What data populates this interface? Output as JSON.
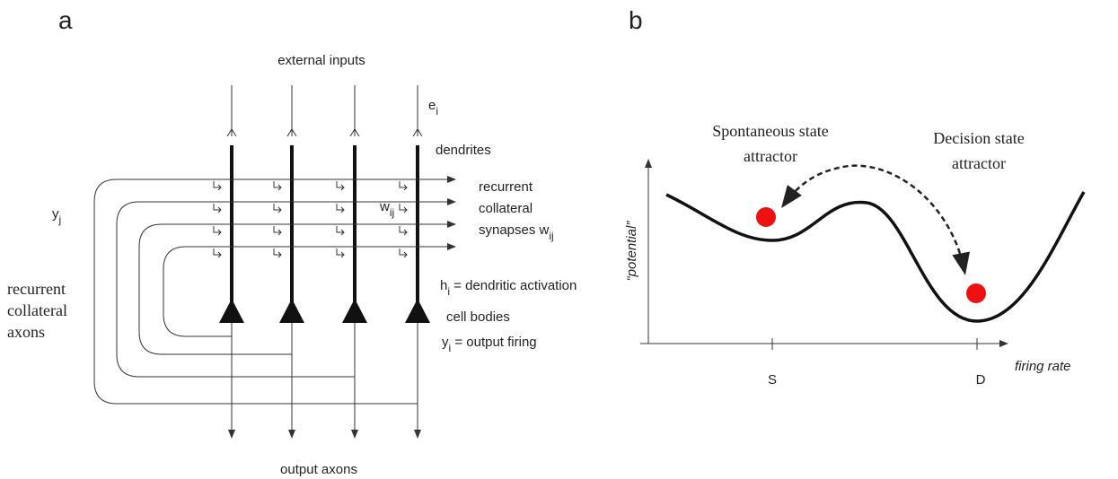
{
  "panel_a": {
    "label": "a",
    "external_inputs": "external inputs",
    "input_label": {
      "base": "e",
      "sub": "i"
    },
    "dendrites": "dendrites",
    "synapses_label": {
      "lines": [
        "recurrent",
        "collateral",
        "synapses w"
      ],
      "sub": "ij"
    },
    "presyn_label": {
      "base": "y",
      "sub": "j"
    },
    "weight_label": {
      "base": "w",
      "sub": "ij"
    },
    "axons_label": [
      "recurrent",
      "collateral",
      "axons"
    ],
    "activation_label": {
      "base": "h",
      "sub": "i",
      "rest": " = dendritic activation"
    },
    "cell_bodies": "cell bodies",
    "firing_label": {
      "base": "y",
      "sub": "i",
      "rest": " = output firing"
    },
    "output_axons": "output axons"
  },
  "panel_b": {
    "label": "b",
    "spontaneous_label": [
      "Spontaneous state",
      "attractor"
    ],
    "decision_label": [
      "Decision state",
      "attractor"
    ],
    "y_axis_label": "“potential”",
    "x_axis_label": "firing rate",
    "ticks": [
      "S",
      "D"
    ]
  }
}
